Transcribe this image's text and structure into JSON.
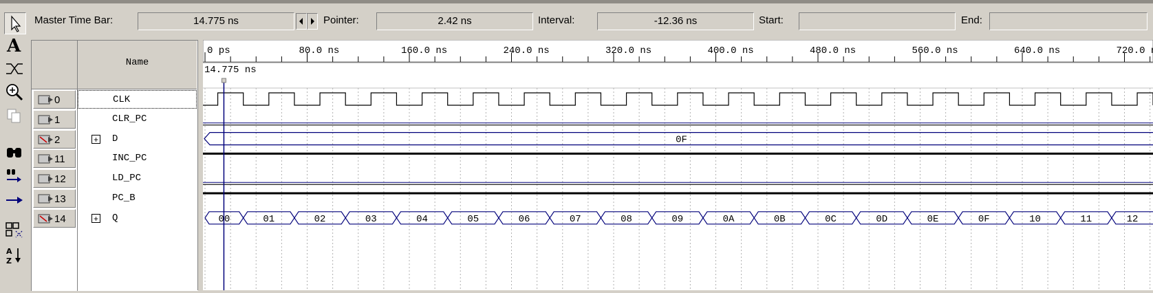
{
  "header": {
    "master_time_bar_label": "Master Time Bar:",
    "master_time_bar_value": "14.775 ns",
    "pointer_label": "Pointer:",
    "pointer_value": "2.42 ns",
    "interval_label": "Interval:",
    "interval_value": "-12.36 ns",
    "start_label": "Start:",
    "start_value": "",
    "end_label": "End:",
    "end_value": ""
  },
  "toolbar": {
    "tools": [
      "selection-arrow-icon",
      "text-tool-icon",
      "waveform-editing-icon",
      "zoom-icon",
      "copy-icon",
      "find-icon",
      "find-next-icon",
      "next-transition-icon",
      "group-icon",
      "sort-icon"
    ]
  },
  "columns": {
    "name_header": "Name",
    "value_header": ""
  },
  "timeline": {
    "labels": [
      "0 ps",
      "80.0 ns",
      "160.0 ns",
      "240.0 ns",
      "320.0 ns",
      "400.0 ns",
      "480.0 ns",
      "560.0 ns",
      "640.0 ns",
      "720.0 ns"
    ],
    "cursor_label": "14.775 ns"
  },
  "signals": [
    {
      "index": "0",
      "name": "CLK",
      "expandable": false,
      "type": "clock"
    },
    {
      "index": "1",
      "name": "CLR_PC",
      "expandable": false,
      "type": "low"
    },
    {
      "index": "2",
      "name": "D",
      "expandable": true,
      "type": "bus",
      "bus_value": "0F"
    },
    {
      "index": "11",
      "name": "INC_PC",
      "expandable": false,
      "type": "high"
    },
    {
      "index": "12",
      "name": "LD_PC",
      "expandable": false,
      "type": "low"
    },
    {
      "index": "13",
      "name": "PC_B",
      "expandable": false,
      "type": "high"
    },
    {
      "index": "14",
      "name": "Q",
      "expandable": true,
      "type": "bus_counter",
      "values": [
        "00",
        "01",
        "02",
        "03",
        "04",
        "05",
        "06",
        "07",
        "08",
        "09",
        "0A",
        "0B",
        "0C",
        "0D",
        "0E",
        "0F",
        "10",
        "11",
        "12"
      ]
    }
  ]
}
